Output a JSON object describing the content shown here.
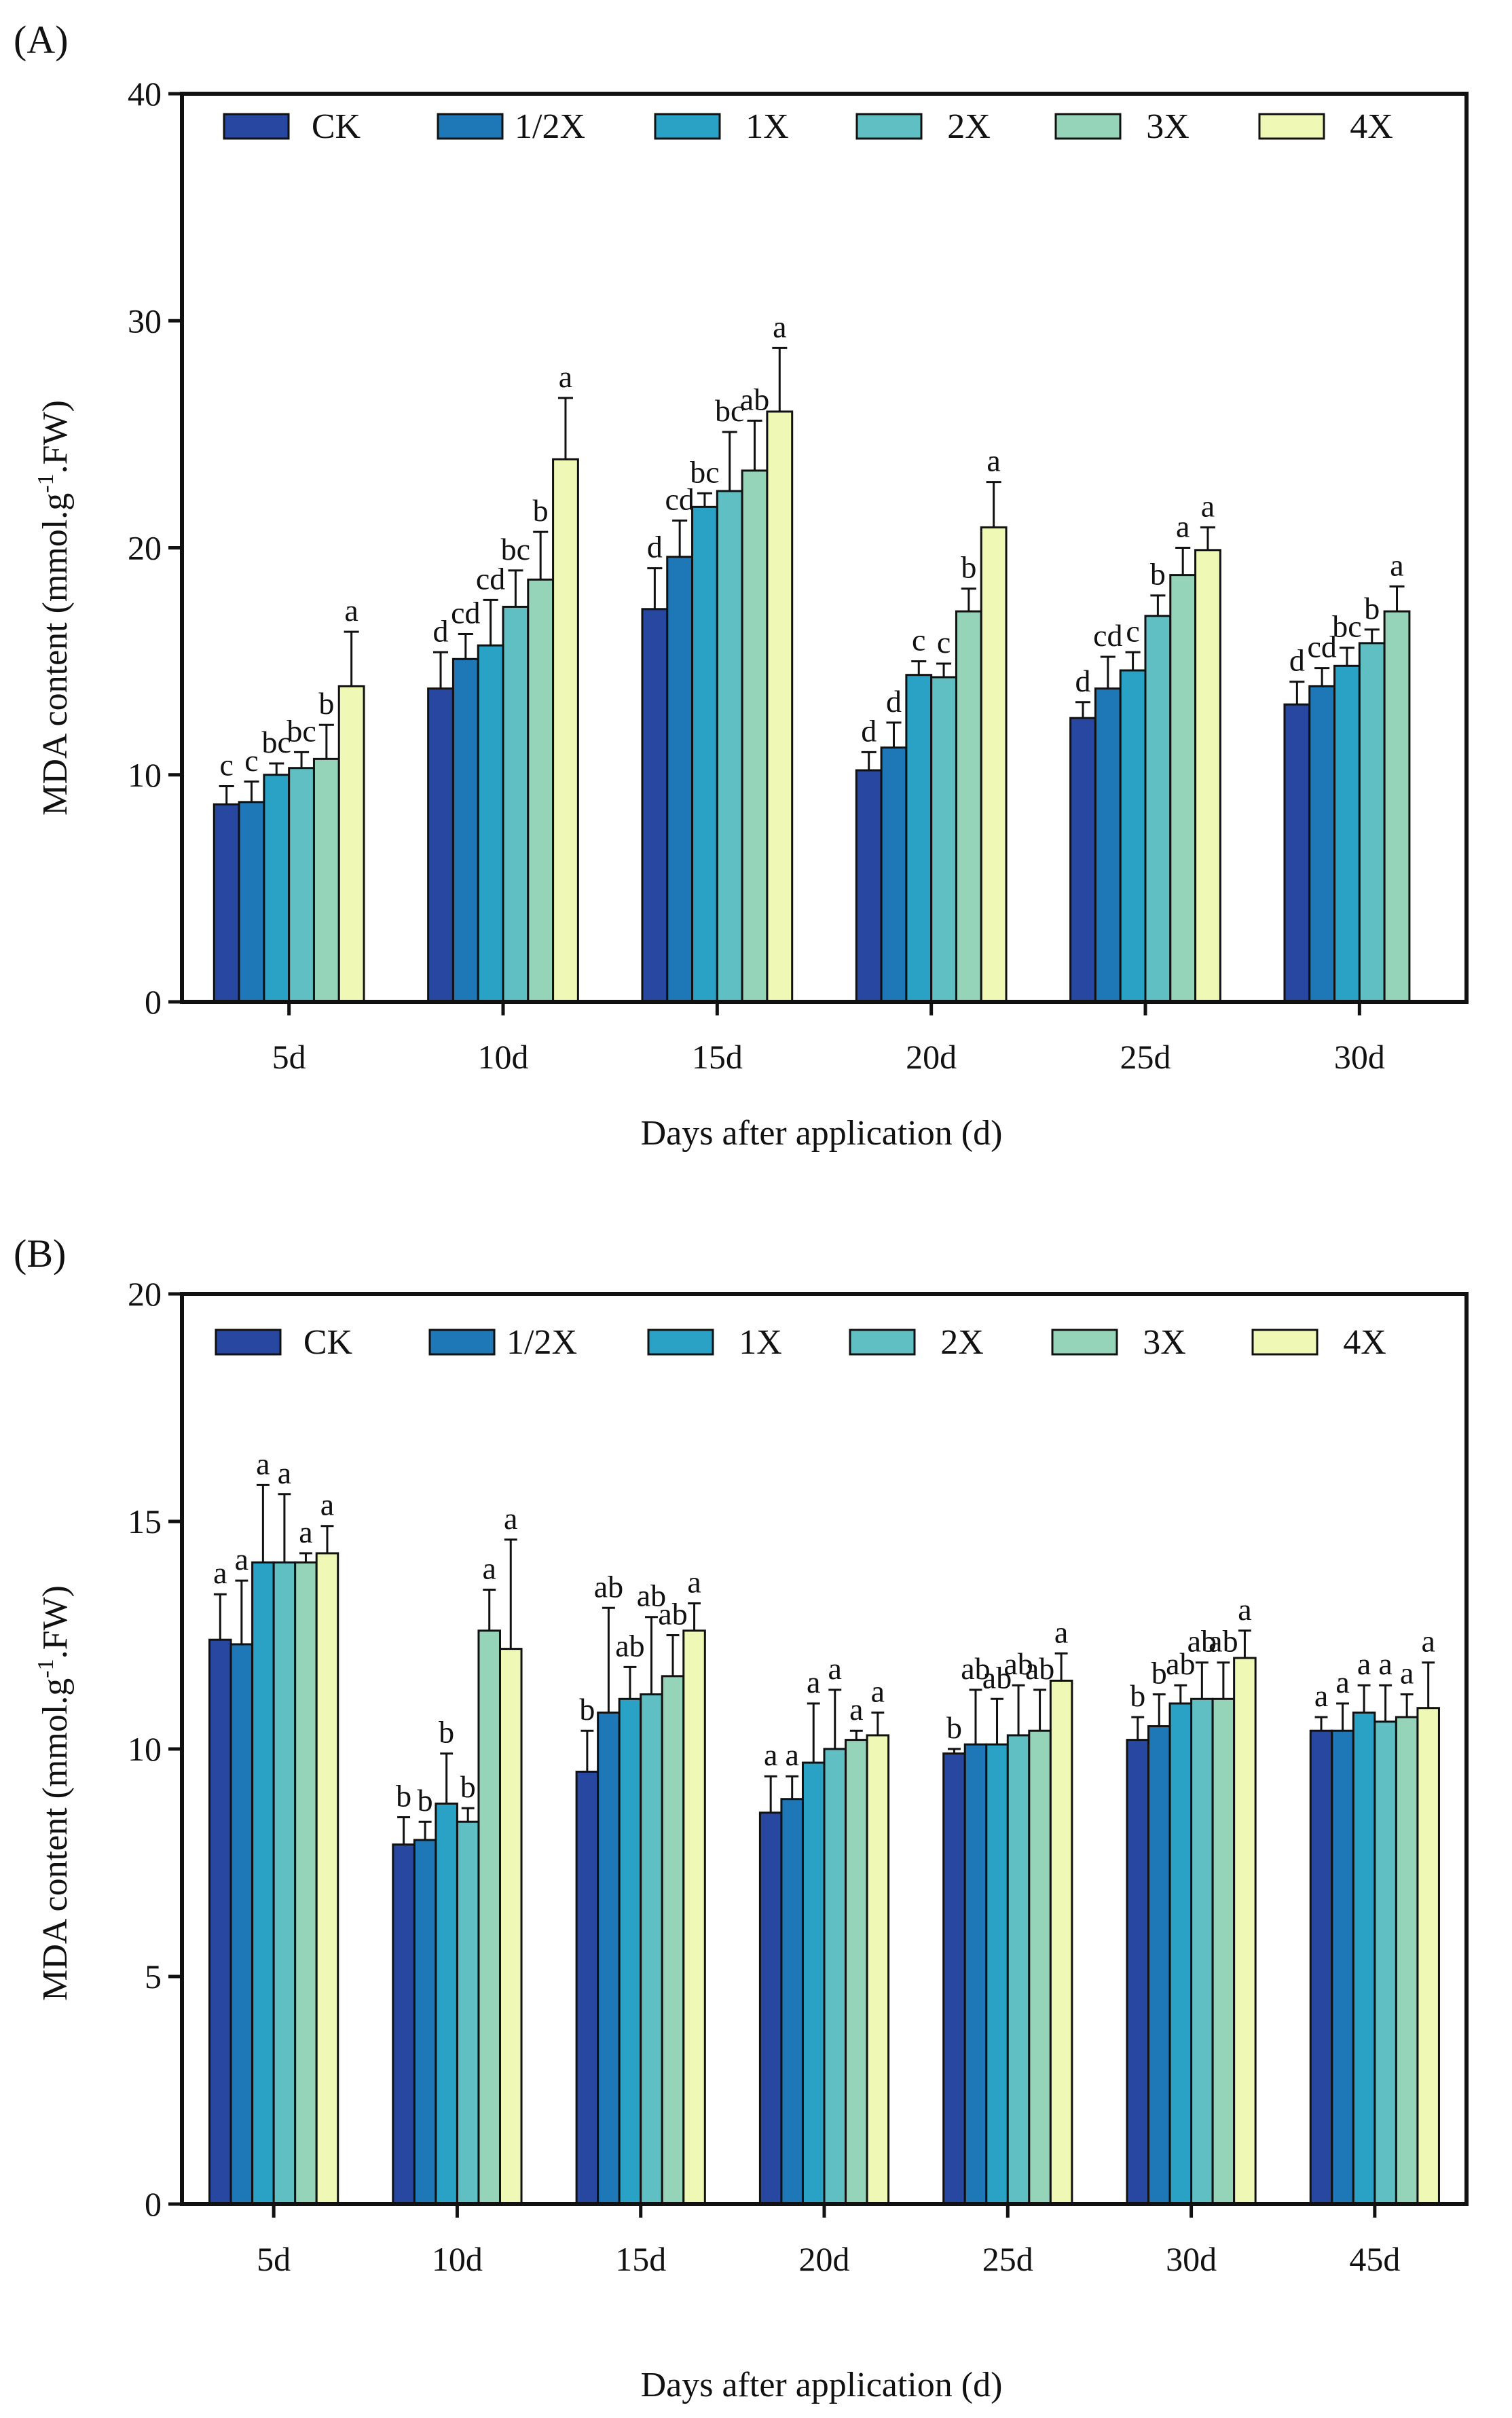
{
  "colors": {
    "CK": "#2747a0",
    "1/2X": "#1e78b8",
    "1X": "#2aa2c5",
    "2X": "#5fbfc2",
    "3X": "#95d4b8",
    "4X": "#eff8b4"
  },
  "chart_data": [
    {
      "id": "A",
      "panel_label": "(A)",
      "type": "bar",
      "ylabel_pre": "MDA content (mmol.g",
      "ylabel_sup": "-1",
      "ylabel_post": ".FW)",
      "xlabel": "Days after application (d)",
      "ylim": [
        0,
        40
      ],
      "yticks": [
        "0",
        "10",
        "20",
        "30",
        "40"
      ],
      "legend": [
        "CK",
        "1/2X",
        "1X",
        "2X",
        "3X",
        "4X"
      ],
      "categories": [
        "5d",
        "10d",
        "15d",
        "20d",
        "25d",
        "30d"
      ],
      "series": [
        {
          "name": "CK",
          "values": [
            8.7,
            13.8,
            17.3,
            10.2,
            12.5,
            13.1
          ],
          "errors": [
            0.8,
            1.6,
            1.8,
            0.8,
            0.7,
            1.0
          ],
          "labels": [
            "c",
            "d",
            "d",
            "d",
            "d",
            "d"
          ]
        },
        {
          "name": "1/2X",
          "values": [
            8.8,
            15.1,
            19.6,
            11.2,
            13.8,
            13.9
          ],
          "errors": [
            0.9,
            1.1,
            1.6,
            1.1,
            1.4,
            0.8
          ],
          "labels": [
            "c",
            "cd",
            "cd",
            "d",
            "cd",
            "cd"
          ]
        },
        {
          "name": "1X",
          "values": [
            10.0,
            15.7,
            21.8,
            14.4,
            14.6,
            14.8
          ],
          "errors": [
            0.5,
            2.0,
            0.6,
            0.6,
            0.8,
            0.8
          ],
          "labels": [
            "bc",
            "cd",
            "bc",
            "c",
            "c",
            "bc"
          ]
        },
        {
          "name": "2X",
          "values": [
            10.3,
            17.4,
            22.5,
            14.3,
            17.0,
            15.8
          ],
          "errors": [
            0.7,
            1.6,
            2.6,
            0.6,
            0.9,
            0.6
          ],
          "labels": [
            "bc",
            "bc",
            "bc",
            "c",
            "b",
            "b"
          ]
        },
        {
          "name": "3X",
          "values": [
            10.7,
            18.6,
            23.4,
            17.2,
            18.8,
            17.2
          ],
          "errors": [
            1.5,
            2.1,
            2.2,
            1.0,
            1.2,
            1.1
          ],
          "labels": [
            "b",
            "b",
            "ab",
            "b",
            "a",
            "a"
          ]
        },
        {
          "name": "4X",
          "values": [
            13.9,
            23.9,
            26.0,
            20.9,
            19.9,
            null
          ],
          "errors": [
            2.4,
            2.7,
            2.8,
            2.0,
            1.0,
            null
          ],
          "labels": [
            "a",
            "a",
            "a",
            "a",
            "a",
            ""
          ]
        }
      ]
    },
    {
      "id": "B",
      "panel_label": "(B)",
      "type": "bar",
      "ylabel_pre": "MDA content (mmol.g",
      "ylabel_sup": "-1",
      "ylabel_post": ".FW)",
      "xlabel": "Days after application (d)",
      "ylim": [
        0,
        20
      ],
      "yticks": [
        "0",
        "5",
        "10",
        "15",
        "20"
      ],
      "legend": [
        "CK",
        "1/2X",
        "1X",
        "2X",
        "3X",
        "4X"
      ],
      "categories": [
        "5d",
        "10d",
        "15d",
        "20d",
        "25d",
        "30d",
        "45d"
      ],
      "series": [
        {
          "name": "CK",
          "values": [
            12.4,
            7.9,
            9.5,
            8.6,
            9.9,
            10.2,
            10.4
          ],
          "errors": [
            1.0,
            0.6,
            0.9,
            0.8,
            0.1,
            0.5,
            0.3
          ],
          "labels": [
            "a",
            "b",
            "b",
            "a",
            "b",
            "b",
            "a"
          ]
        },
        {
          "name": "1/2X",
          "values": [
            12.3,
            8.0,
            10.8,
            8.9,
            10.1,
            10.5,
            10.4
          ],
          "errors": [
            1.4,
            0.4,
            2.3,
            0.5,
            1.2,
            0.7,
            0.6
          ],
          "labels": [
            "a",
            "b",
            "ab",
            "a",
            "ab",
            "b",
            "a"
          ]
        },
        {
          "name": "1X",
          "values": [
            14.1,
            8.8,
            11.1,
            9.7,
            10.1,
            11.0,
            10.8
          ],
          "errors": [
            1.7,
            1.1,
            0.7,
            1.3,
            1.0,
            0.4,
            0.6
          ],
          "labels": [
            "a",
            "b",
            "ab",
            "a",
            "ab",
            "ab",
            "a"
          ]
        },
        {
          "name": "2X",
          "values": [
            14.1,
            8.4,
            11.2,
            10.0,
            10.3,
            11.1,
            10.6
          ],
          "errors": [
            1.5,
            0.3,
            1.7,
            1.3,
            1.1,
            0.8,
            0.8
          ],
          "labels": [
            "a",
            "b",
            "ab",
            "a",
            "ab",
            "ab",
            "a"
          ]
        },
        {
          "name": "3X",
          "values": [
            14.1,
            12.6,
            11.6,
            10.2,
            10.4,
            11.1,
            10.7
          ],
          "errors": [
            0.2,
            0.9,
            0.9,
            0.2,
            0.9,
            0.8,
            0.5
          ],
          "labels": [
            "a",
            "a",
            "ab",
            "a",
            "ab",
            "ab",
            "a"
          ]
        },
        {
          "name": "4X",
          "values": [
            14.3,
            12.2,
            12.6,
            10.3,
            11.5,
            12.0,
            10.9
          ],
          "errors": [
            0.6,
            2.4,
            0.6,
            0.5,
            0.6,
            0.6,
            1.0
          ],
          "labels": [
            "a",
            "a",
            "a",
            "a",
            "a",
            "a",
            "a"
          ]
        }
      ]
    }
  ]
}
